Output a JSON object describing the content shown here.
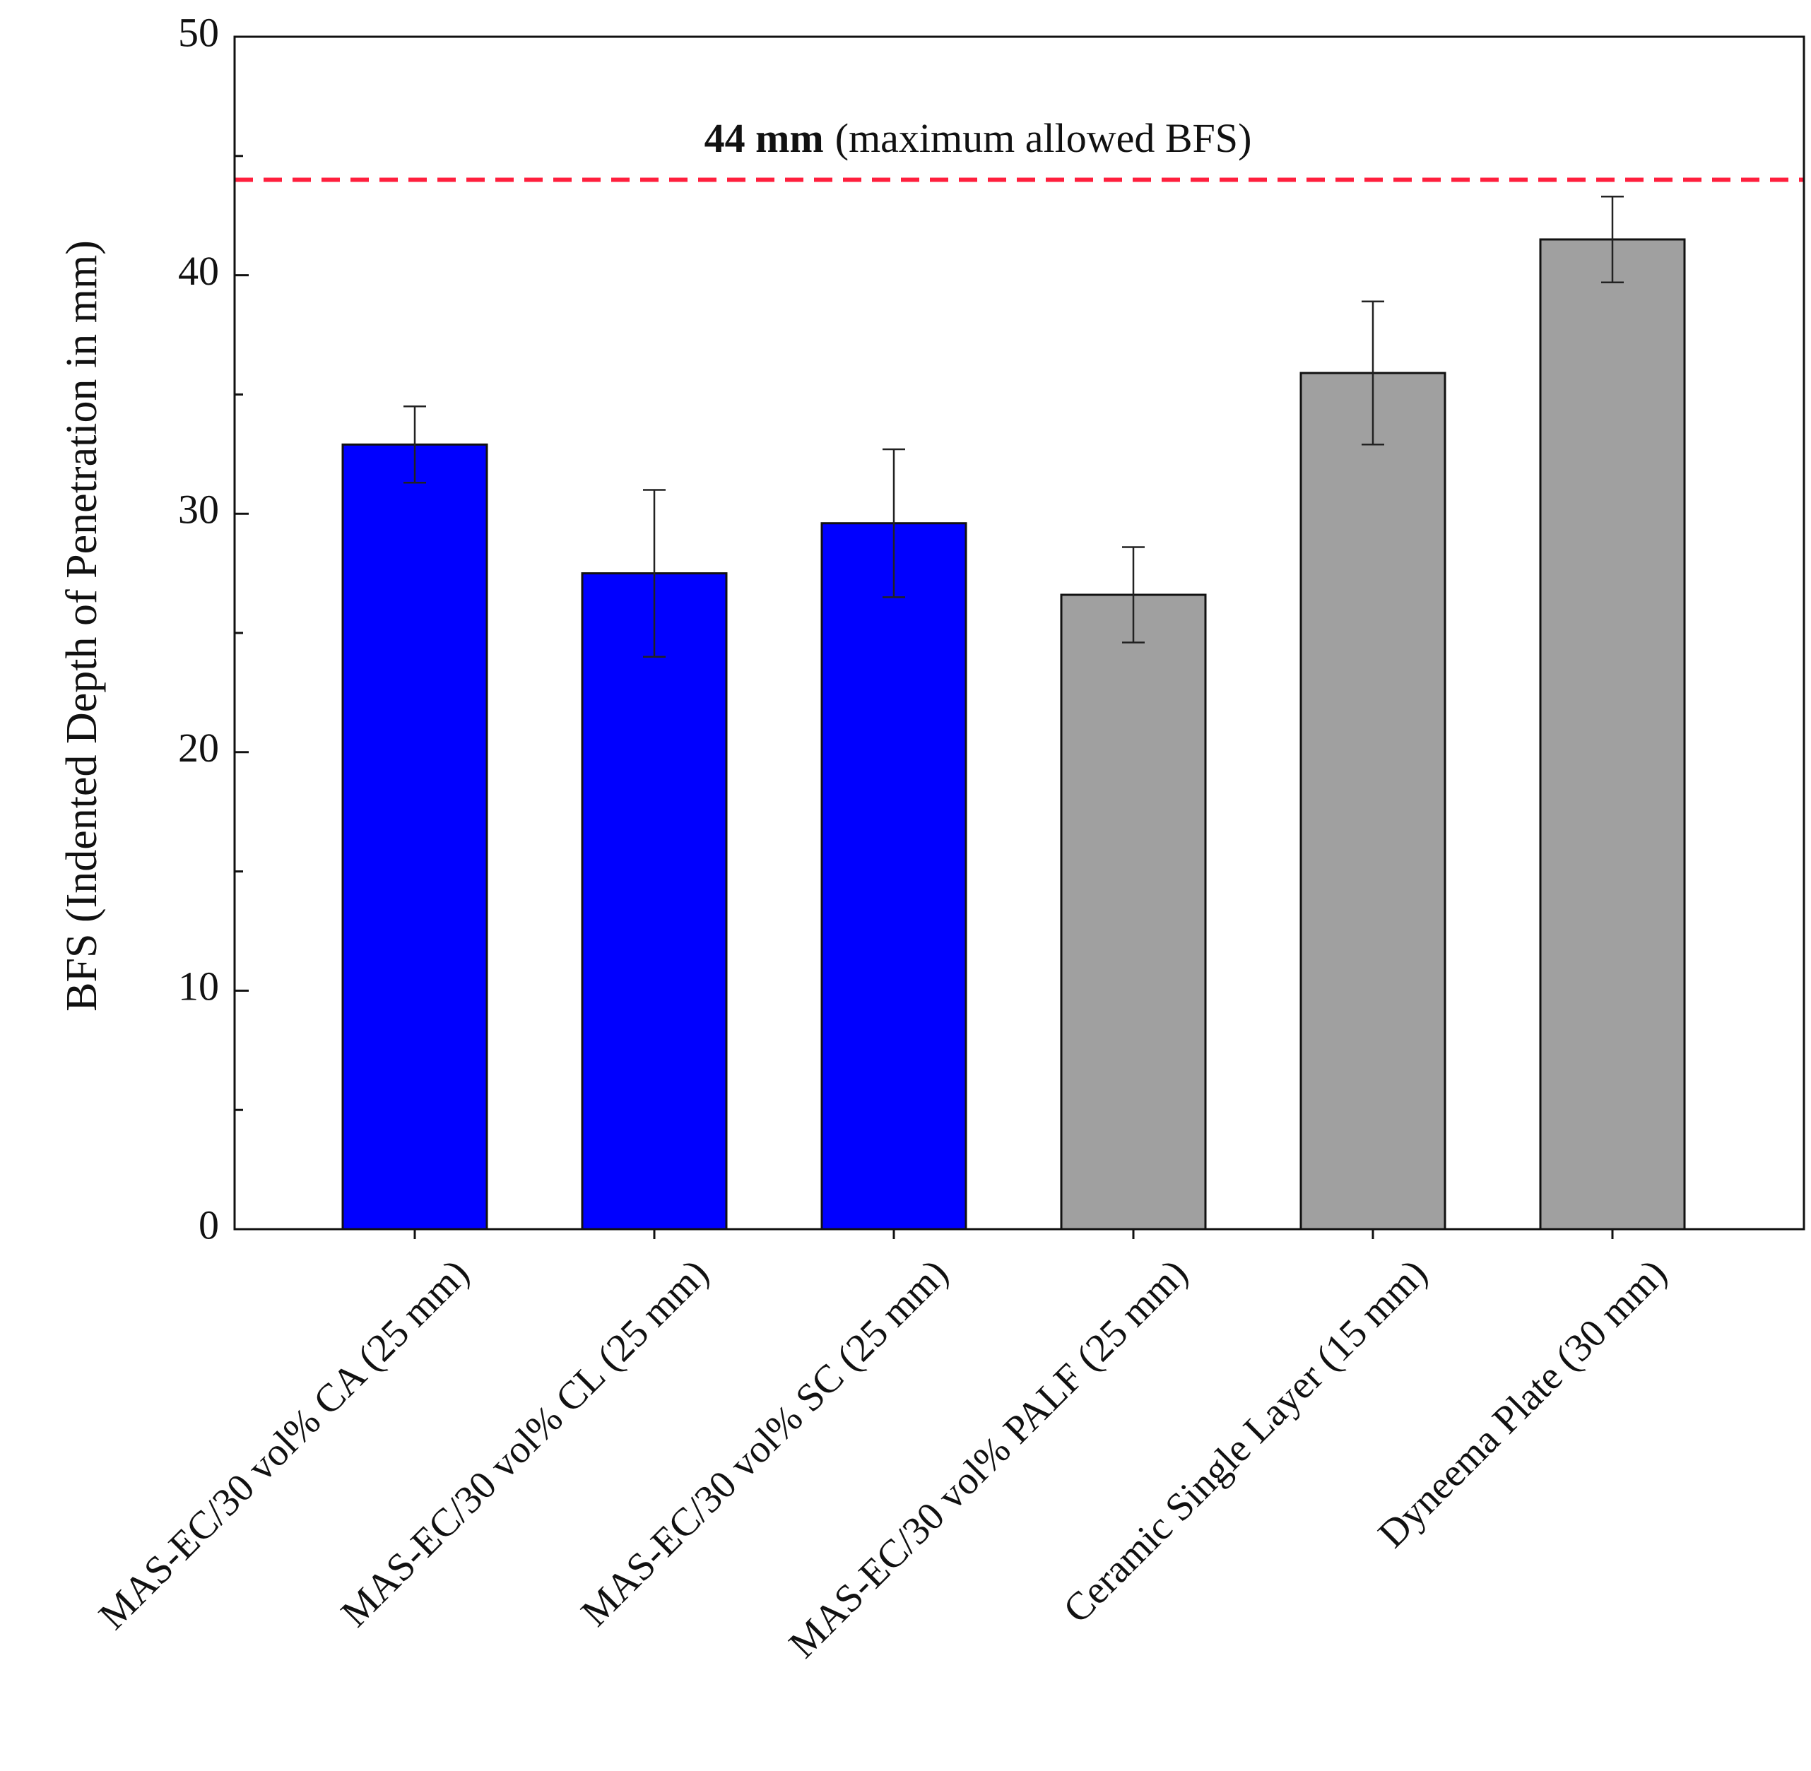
{
  "chart_data": {
    "type": "bar",
    "title": "",
    "xlabel": "",
    "ylabel": "BFS (Indented Depth of Penetration in mm)",
    "ylim": [
      0,
      50
    ],
    "yticks": [
      0,
      10,
      20,
      30,
      40,
      50
    ],
    "grid": false,
    "categories": [
      "MAS-EC/30 vol% CA (25 mm)",
      "MAS-EC/30 vol% CL (25 mm)",
      "MAS-EC/30 vol% SC (25 mm)",
      "MAS-EC/30 vol% PALF (25 mm)",
      "Ceramic Single Layer (15 mm)",
      "Dyneema Plate (30 mm)"
    ],
    "values": [
      32.9,
      27.5,
      29.6,
      26.6,
      35.9,
      41.5
    ],
    "errors": [
      1.6,
      3.5,
      3.1,
      2.0,
      3.0,
      1.8
    ],
    "bar_colors": [
      "#0000ff",
      "#0000ff",
      "#0000ff",
      "#a0a0a0",
      "#a0a0a0",
      "#a0a0a0"
    ],
    "reference_line": {
      "value": 44,
      "color": "#ff1f3d",
      "style": "dashed",
      "label_bold": "44 mm",
      "label_rest": "(maximum allowed BFS)"
    }
  }
}
